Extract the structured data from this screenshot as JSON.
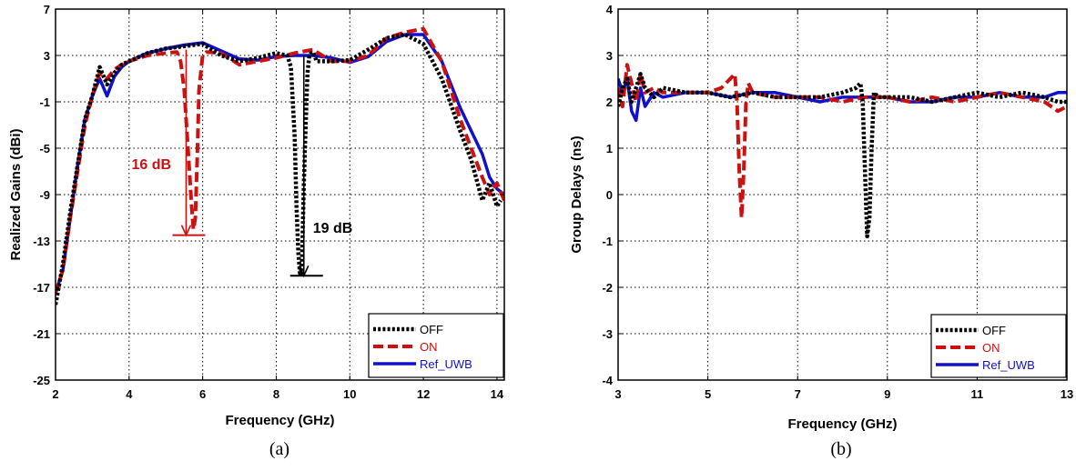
{
  "colors": {
    "OFF": "#000000",
    "ON": "#cc1111",
    "Ref_UWB": "#1111cc"
  },
  "chart_data": [
    {
      "type": "line",
      "caption": "(a)",
      "xlabel": "Frequency (GHz)",
      "ylabel": "Realized Gains (dBi)",
      "xlim": [
        2,
        14.2
      ],
      "ylim": [
        -25,
        7
      ],
      "xticks": [
        2,
        4,
        6,
        8,
        10,
        12,
        14
      ],
      "yticks": [
        7,
        3,
        -1,
        -5,
        -9,
        -13,
        -17,
        -21,
        -25
      ],
      "grid": true,
      "legend_position": "bottom-right",
      "annotations": [
        {
          "text": "16 dB",
          "color": "#cc1111",
          "x": 5.55,
          "from": 3.5,
          "to": -12.5
        },
        {
          "text": "19 dB",
          "color": "#000000",
          "x": 8.75,
          "from": 3.0,
          "to": -16.0
        }
      ],
      "series": [
        {
          "name": "OFF",
          "style": "dotted",
          "x": [
            2.0,
            2.2,
            2.4,
            2.6,
            2.8,
            3.0,
            3.2,
            3.4,
            3.6,
            3.8,
            4.0,
            4.5,
            5.0,
            5.5,
            6.0,
            6.5,
            7.0,
            7.5,
            8.0,
            8.3,
            8.4,
            8.5,
            8.55,
            8.6,
            8.65,
            8.7,
            8.75,
            8.8,
            8.85,
            8.9,
            8.95,
            9.0,
            9.1,
            9.5,
            10.0,
            10.5,
            11.0,
            11.5,
            12.0,
            12.5,
            13.0,
            13.3,
            13.6,
            13.8,
            14.0,
            14.1
          ],
          "y": [
            -18.5,
            -15,
            -10.5,
            -6.5,
            -2.5,
            -0.5,
            2,
            0.5,
            1.5,
            2.2,
            2.5,
            3.2,
            3.6,
            3.8,
            4.0,
            3.0,
            2.5,
            2.8,
            3.2,
            3.0,
            2.0,
            -4,
            -10,
            -14,
            -16,
            -15,
            -8,
            -3,
            1.5,
            3.0,
            3.2,
            3.3,
            2.5,
            2.5,
            2.6,
            3.5,
            4.5,
            4.8,
            4.0,
            1.0,
            -3.5,
            -6,
            -9.5,
            -8,
            -10,
            -9.5
          ]
        },
        {
          "name": "ON",
          "style": "dashed",
          "x": [
            2.0,
            2.2,
            2.4,
            2.6,
            2.8,
            3.0,
            3.2,
            3.4,
            3.6,
            3.8,
            4.0,
            4.5,
            5.0,
            5.3,
            5.4,
            5.5,
            5.6,
            5.7,
            5.75,
            5.8,
            5.85,
            5.9,
            6.0,
            6.1,
            6.5,
            7.0,
            7.5,
            8.0,
            8.5,
            9.0,
            9.5,
            10.0,
            10.5,
            11.0,
            11.5,
            12.0,
            12.5,
            13.0,
            13.3,
            13.6,
            13.8,
            14.0,
            14.2
          ],
          "y": [
            -17.5,
            -15.5,
            -11,
            -7,
            -3,
            -0.5,
            1.5,
            1.0,
            1.8,
            2.2,
            2.5,
            3.0,
            3.2,
            3.3,
            2.5,
            0,
            -5,
            -10,
            -12,
            -11,
            -6,
            0,
            3.0,
            3.3,
            3.2,
            2.2,
            2.5,
            2.8,
            3.2,
            3.5,
            2.5,
            2.5,
            3.0,
            4.5,
            5.0,
            5.3,
            2.5,
            -2.5,
            -5,
            -7.5,
            -9,
            -8,
            -9.5
          ]
        },
        {
          "name": "Ref_UWB",
          "style": "solid",
          "x": [
            2.0,
            2.2,
            2.4,
            2.6,
            2.8,
            3.0,
            3.2,
            3.4,
            3.6,
            3.8,
            4.0,
            4.5,
            5.0,
            5.5,
            6.0,
            6.5,
            7.0,
            7.5,
            8.0,
            8.5,
            9.0,
            9.5,
            10.0,
            10.5,
            11.0,
            11.5,
            12.0,
            12.5,
            13.0,
            13.3,
            13.6,
            13.8,
            14.0,
            14.2
          ],
          "y": [
            -17.5,
            -15.5,
            -11,
            -6.5,
            -2.5,
            -0.5,
            1.0,
            -0.5,
            1.2,
            2.0,
            2.5,
            3.2,
            3.6,
            3.9,
            4.1,
            3.4,
            2.7,
            2.6,
            2.9,
            3.0,
            3.0,
            2.8,
            2.4,
            2.9,
            4.2,
            4.8,
            4.8,
            2.5,
            -1.5,
            -3.5,
            -5.5,
            -7.5,
            -8.5,
            -9
          ]
        }
      ]
    },
    {
      "type": "line",
      "caption": "(b)",
      "xlabel": "Frequency (GHz)",
      "ylabel": "Group Delays (ns)",
      "xlim": [
        3,
        13
      ],
      "ylim": [
        -4,
        4
      ],
      "xticks": [
        3,
        5,
        7,
        9,
        11,
        13
      ],
      "yticks": [
        4,
        3,
        2,
        1,
        0,
        -1,
        -2,
        -3,
        -4
      ],
      "grid": true,
      "legend_position": "bottom-right",
      "series": [
        {
          "name": "OFF",
          "style": "dotted",
          "x": [
            3.0,
            3.1,
            3.2,
            3.3,
            3.4,
            3.5,
            3.6,
            3.8,
            4.0,
            4.5,
            5.0,
            5.5,
            6.0,
            6.5,
            7.0,
            7.5,
            8.0,
            8.3,
            8.4,
            8.45,
            8.5,
            8.55,
            8.6,
            8.65,
            8.7,
            8.8,
            9.0,
            9.5,
            10.0,
            10.5,
            11.0,
            11.5,
            12.0,
            12.5,
            12.8,
            13.0
          ],
          "y": [
            1.9,
            2.3,
            2.5,
            2.0,
            2.3,
            2.6,
            2.3,
            2.1,
            2.3,
            2.2,
            2.2,
            2.1,
            2.2,
            2.1,
            2.1,
            2.1,
            2.2,
            2.3,
            2.4,
            2.0,
            0.5,
            -0.9,
            -0.5,
            1.0,
            2.2,
            2.1,
            2.1,
            2.1,
            2.0,
            2.1,
            2.2,
            2.1,
            2.2,
            2.1,
            2.0,
            2.0
          ]
        },
        {
          "name": "ON",
          "style": "dashed",
          "x": [
            3.0,
            3.1,
            3.2,
            3.3,
            3.4,
            3.5,
            3.6,
            3.8,
            4.0,
            4.5,
            5.0,
            5.3,
            5.5,
            5.6,
            5.65,
            5.7,
            5.75,
            5.8,
            5.85,
            5.9,
            6.0,
            6.5,
            7.0,
            7.5,
            8.0,
            8.5,
            9.0,
            9.5,
            10.0,
            10.5,
            11.0,
            11.5,
            12.0,
            12.5,
            12.8,
            13.0
          ],
          "y": [
            2.3,
            1.9,
            2.8,
            2.4,
            2.0,
            2.6,
            2.2,
            2.3,
            2.2,
            2.2,
            2.2,
            2.3,
            2.5,
            2.6,
            2.0,
            0.5,
            -0.5,
            0.5,
            2.0,
            2.4,
            2.2,
            2.1,
            2.1,
            2.1,
            2.0,
            2.1,
            2.1,
            2.0,
            2.1,
            2.0,
            2.1,
            2.2,
            2.1,
            2.0,
            1.8,
            1.9
          ]
        },
        {
          "name": "Ref_UWB",
          "style": "solid",
          "x": [
            3.0,
            3.1,
            3.2,
            3.3,
            3.4,
            3.5,
            3.6,
            3.8,
            4.0,
            4.5,
            5.0,
            5.5,
            6.0,
            6.5,
            7.0,
            7.5,
            8.0,
            8.5,
            9.0,
            9.5,
            10.0,
            10.5,
            11.0,
            11.5,
            12.0,
            12.5,
            12.8,
            13.0
          ],
          "y": [
            2.5,
            2.2,
            2.5,
            1.8,
            1.6,
            2.3,
            1.9,
            2.2,
            2.1,
            2.2,
            2.2,
            2.1,
            2.2,
            2.2,
            2.1,
            2.0,
            2.1,
            2.1,
            2.1,
            2.0,
            2.0,
            2.1,
            2.1,
            2.2,
            2.1,
            2.1,
            2.2,
            2.2
          ]
        }
      ]
    }
  ]
}
